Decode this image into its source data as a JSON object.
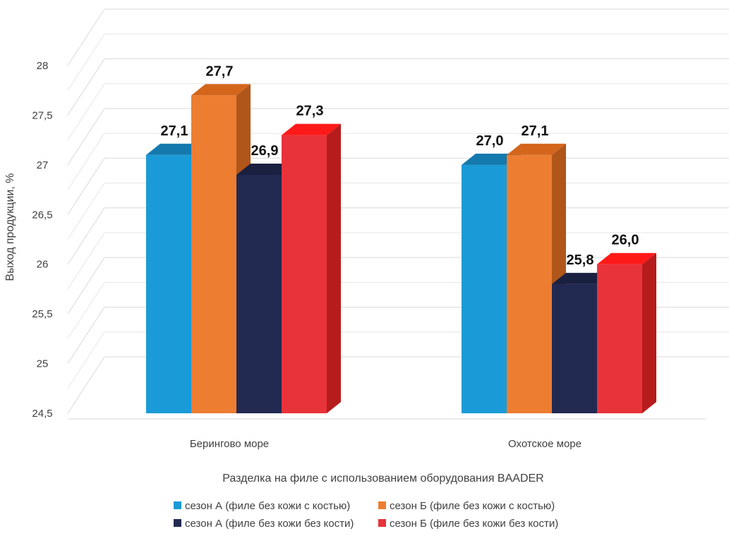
{
  "chart_data": {
    "type": "bar",
    "style": "3d-clustered-column",
    "categories": [
      "Берингово море",
      "Охотское море"
    ],
    "series": [
      {
        "name": "сезон А (филе без кожи с костью)",
        "values": [
          27.1,
          27.0
        ],
        "labels": [
          "27,1",
          "27,0"
        ],
        "color": "#1a9bd7",
        "top_color": "#1479ad",
        "side_color": "#13678f"
      },
      {
        "name": "сезон Б (филе без кожи с костью)",
        "values": [
          27.7,
          27.1
        ],
        "labels": [
          "27,7",
          "27,1"
        ],
        "color": "#ed7d31",
        "top_color": "#d4661c",
        "side_color": "#b0561a"
      },
      {
        "name": "сезон А (филе без кожи без кости)",
        "values": [
          26.9,
          25.8
        ],
        "labels": [
          "26,9",
          "25,8"
        ],
        "color": "#222a52",
        "top_color": "#1a2040",
        "side_color": "#141930"
      },
      {
        "name": "сезон Б (филе без кожи без кости)",
        "values": [
          27.3,
          26.0
        ],
        "labels": [
          "27,3",
          "26,0"
        ],
        "color": "#e8333a",
        "top_color": "#ff1a1a",
        "side_color": "#b71c1c"
      }
    ],
    "xlabel": "Разделка на филе с использованием оборудования  BAADER",
    "ylabel": "Выход продукции, %",
    "ylim": [
      24.5,
      28
    ],
    "y_ticks": [
      {
        "value": 24.5,
        "label": "24,5"
      },
      {
        "value": 25,
        "label": "25"
      },
      {
        "value": 25.5,
        "label": "25,5"
      },
      {
        "value": 26,
        "label": "26"
      },
      {
        "value": 26.5,
        "label": "26,5"
      },
      {
        "value": 27,
        "label": "27"
      },
      {
        "value": 27.5,
        "label": "27,5"
      },
      {
        "value": 28,
        "label": "28"
      }
    ],
    "grid": true,
    "legend_position": "bottom"
  }
}
